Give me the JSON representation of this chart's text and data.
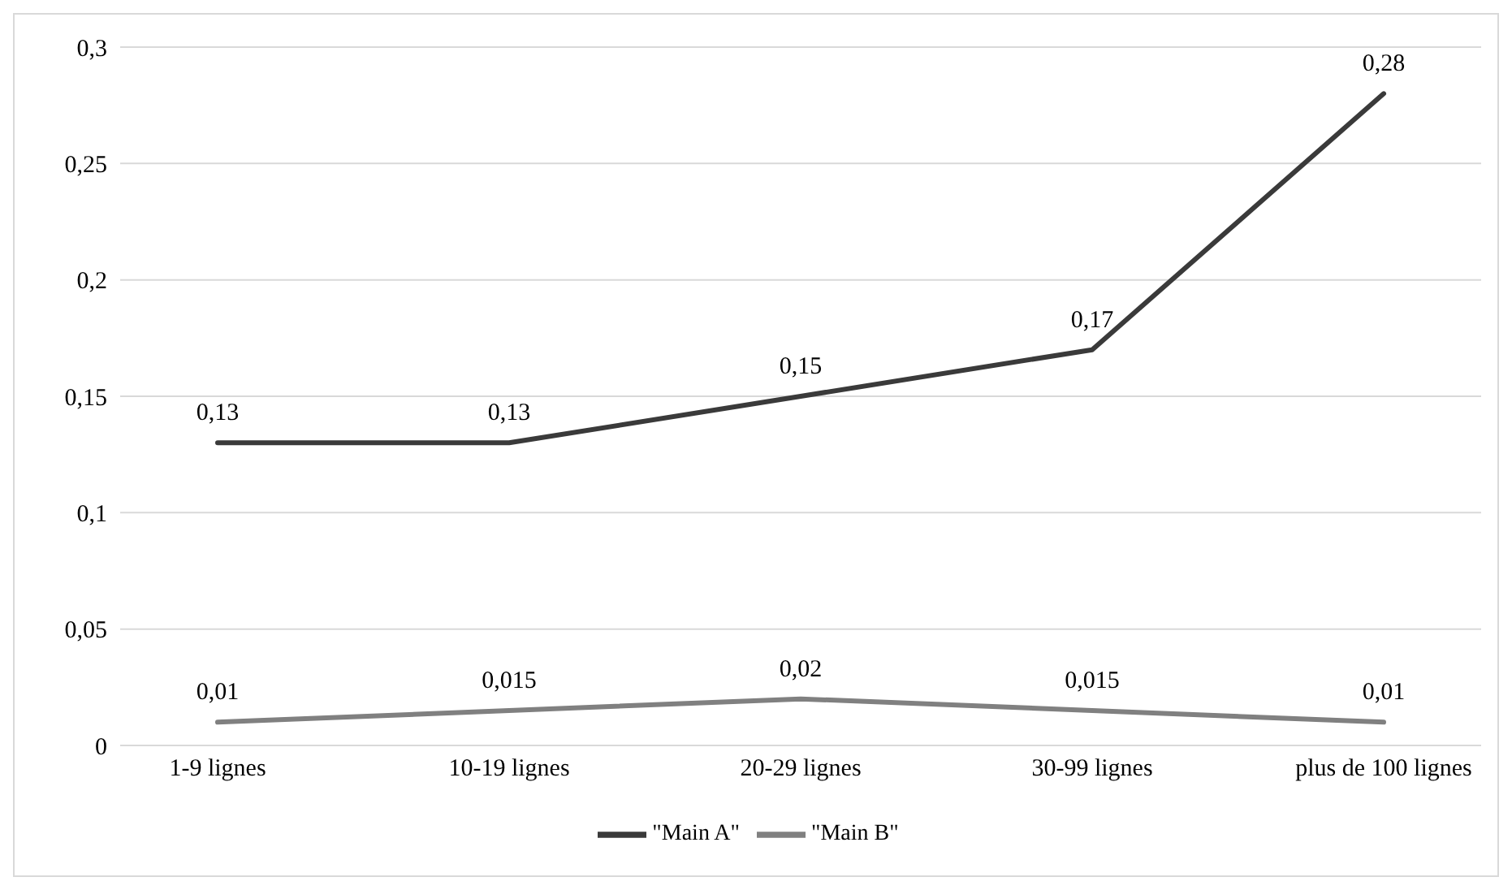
{
  "chart_data": {
    "type": "line",
    "categories": [
      "1-9 lignes",
      "10-19 lignes",
      "20-29 lignes",
      "30-99 lignes",
      "plus de 100 lignes"
    ],
    "series": [
      {
        "name": "\"Main A\"",
        "color": "#3a3a3a",
        "values": [
          0.13,
          0.13,
          0.15,
          0.17,
          0.28
        ],
        "value_labels": [
          "0,13",
          "0,13",
          "0,15",
          "0,17",
          "0,28"
        ]
      },
      {
        "name": "\"Main B\"",
        "color": "#808080",
        "values": [
          0.01,
          0.015,
          0.02,
          0.015,
          0.01
        ],
        "value_labels": [
          "0,01",
          "0,015",
          "0,02",
          "0,015",
          "0,01"
        ]
      }
    ],
    "ylim": [
      0,
      0.3
    ],
    "yticks": [
      {
        "value": 0,
        "label": "0"
      },
      {
        "value": 0.05,
        "label": "0,05"
      },
      {
        "value": 0.1,
        "label": "0,1"
      },
      {
        "value": 0.15,
        "label": "0,15"
      },
      {
        "value": 0.2,
        "label": "0,2"
      },
      {
        "value": 0.25,
        "label": "0,25"
      },
      {
        "value": 0.3,
        "label": "0,3"
      }
    ],
    "grid": "y",
    "legend": "bottom",
    "marker": "none",
    "line_style": "solid"
  }
}
